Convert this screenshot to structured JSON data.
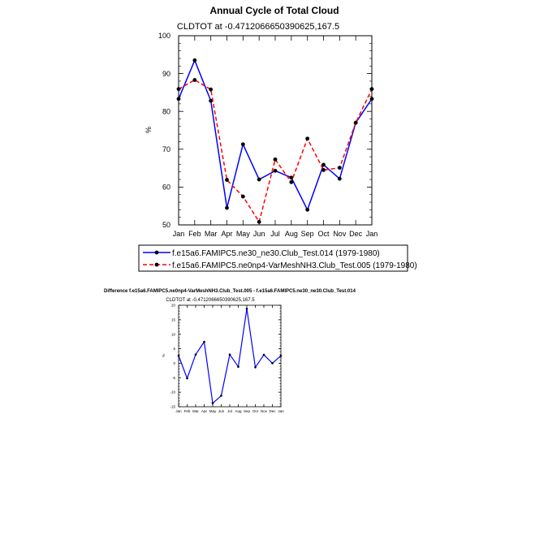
{
  "chart_data": [
    {
      "type": "line",
      "title": "Annual Cycle of Total Cloud",
      "subtitle": "CLDTOT at -0.4712066650390625,167.5",
      "ylabel": "%",
      "xlabel": "",
      "categories": [
        "Jan",
        "Feb",
        "Mar",
        "Apr",
        "May",
        "Jun",
        "Jul",
        "Aug",
        "Sep",
        "Oct",
        "Nov",
        "Dec",
        "Jan"
      ],
      "ylim": [
        50,
        100
      ],
      "yticks": [
        50,
        60,
        70,
        80,
        90,
        100
      ],
      "series": [
        {
          "name": "f.e15a6.FAMIPC5.ne30_ne30.Club_Test.014 (1979-1980)",
          "color": "#0000ff",
          "style": "solid",
          "values": [
            83.3,
            93.5,
            82.8,
            54.5,
            71.3,
            62.0,
            64.3,
            62.5,
            54.0,
            65.9,
            62.2,
            77.0,
            83.3
          ]
        },
        {
          "name": "f.e15a6.FAMIPC5.ne0np4-VarMeshNH3.Club_Test.005 (1979-1980)",
          "color": "#ff0000",
          "style": "dashed",
          "values": [
            85.9,
            88.3,
            85.8,
            61.9,
            57.5,
            50.8,
            67.3,
            61.3,
            72.8,
            64.5,
            65.1,
            77.0,
            85.9
          ]
        }
      ]
    },
    {
      "type": "line",
      "title": "Difference f.e15a6.FAMIPC5.ne0np4-VarMeshNH3.Club_Test.005 - f.e15a6.FAMIPC5.ne30_ne30.Club_Test.014",
      "subtitle": "CLDTOT at -0.4712066650390625,167.5",
      "ylabel": "%",
      "xlabel": "",
      "categories": [
        "Jan",
        "Feb",
        "Mar",
        "Apr",
        "May",
        "Jun",
        "Jul",
        "Aug",
        "Sep",
        "Oct",
        "Nov",
        "Dec",
        "Jan"
      ],
      "ylim": [
        -15,
        20
      ],
      "yticks": [
        -15,
        -10,
        -5,
        0,
        5,
        10,
        15,
        20
      ],
      "series": [
        {
          "color": "#0000ff",
          "style": "solid",
          "values": [
            2.6,
            -5.2,
            3.0,
            7.4,
            -13.8,
            -11.2,
            3.0,
            -1.2,
            18.8,
            -1.4,
            2.9,
            0.0,
            2.6
          ]
        }
      ]
    }
  ]
}
